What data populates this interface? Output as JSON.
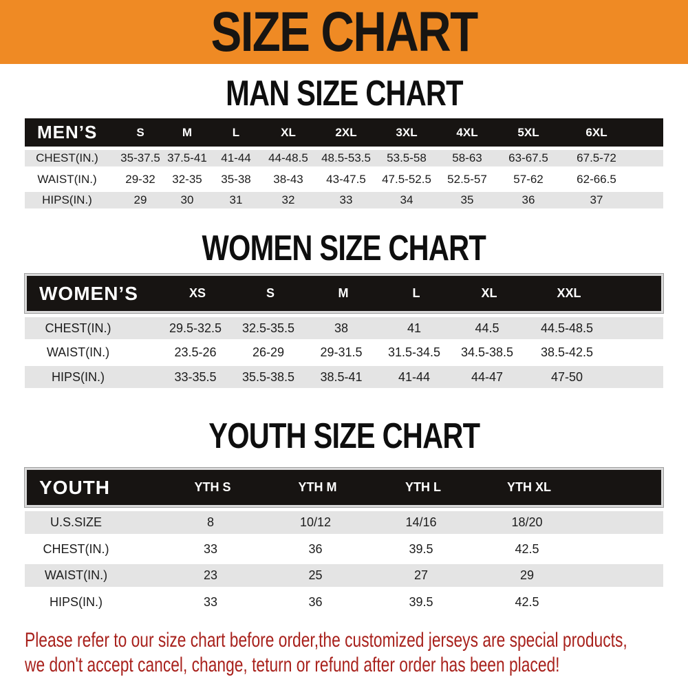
{
  "banner": {
    "title": "SIZE CHART"
  },
  "colors": {
    "banner_bg": "#ef8a24",
    "table_header_bg": "#171412",
    "row_band_gray": "#e4e4e4",
    "note_red": "#a8211c"
  },
  "man": {
    "heading": "MAN SIZE CHART",
    "header": {
      "label": "MEN’S",
      "sizes": [
        "S",
        "M",
        "L",
        "XL",
        "2XL",
        "3XL",
        "4XL",
        "5XL",
        "6XL"
      ]
    },
    "rows": [
      {
        "label": "CHEST(IN.)",
        "values": [
          "35-37.5",
          "37.5-41",
          "41-44",
          "44-48.5",
          "48.5-53.5",
          "53.5-58",
          "58-63",
          "63-67.5",
          "67.5-72"
        ]
      },
      {
        "label": "WAIST(IN.)",
        "values": [
          "29-32",
          "32-35",
          "35-38",
          "38-43",
          "43-47.5",
          "47.5-52.5",
          "52.5-57",
          "57-62",
          "62-66.5"
        ]
      },
      {
        "label": "HIPS(IN.)",
        "values": [
          "29",
          "30",
          "31",
          "32",
          "33",
          "34",
          "35",
          "36",
          "37"
        ]
      }
    ]
  },
  "women": {
    "heading": "WOMEN SIZE CHART",
    "header": {
      "label": "WOMEN’S",
      "sizes": [
        "XS",
        "S",
        "M",
        "L",
        "XL",
        "XXL"
      ]
    },
    "rows": [
      {
        "label": "CHEST(IN.)",
        "values": [
          "29.5-32.5",
          "32.5-35.5",
          "38",
          "41",
          "44.5",
          "44.5-48.5"
        ]
      },
      {
        "label": "WAIST(IN.)",
        "values": [
          "23.5-26",
          "26-29",
          "29-31.5",
          "31.5-34.5",
          "34.5-38.5",
          "38.5-42.5"
        ]
      },
      {
        "label": "HIPS(IN.)",
        "values": [
          "33-35.5",
          "35.5-38.5",
          "38.5-41",
          "41-44",
          "44-47",
          "47-50"
        ]
      }
    ]
  },
  "youth": {
    "heading": "YOUTH SIZE CHART",
    "header": {
      "label": "YOUTH",
      "sizes": [
        "YTH S",
        "YTH M",
        "YTH L",
        "YTH XL"
      ]
    },
    "rows": [
      {
        "label": "U.S.SIZE",
        "values": [
          "8",
          "10/12",
          "14/16",
          "18/20"
        ]
      },
      {
        "label": "CHEST(IN.)",
        "values": [
          "33",
          "36",
          "39.5",
          "42.5"
        ]
      },
      {
        "label": "WAIST(IN.)",
        "values": [
          "23",
          "25",
          "27",
          "29"
        ]
      },
      {
        "label": "HIPS(IN.)",
        "values": [
          "33",
          "36",
          "39.5",
          "42.5"
        ]
      }
    ]
  },
  "note": {
    "line1": "Please refer to our size chart before order,the customized jerseys are special products,",
    "line2": "we don't accept cancel, change, teturn or refund after order has been placed!"
  }
}
